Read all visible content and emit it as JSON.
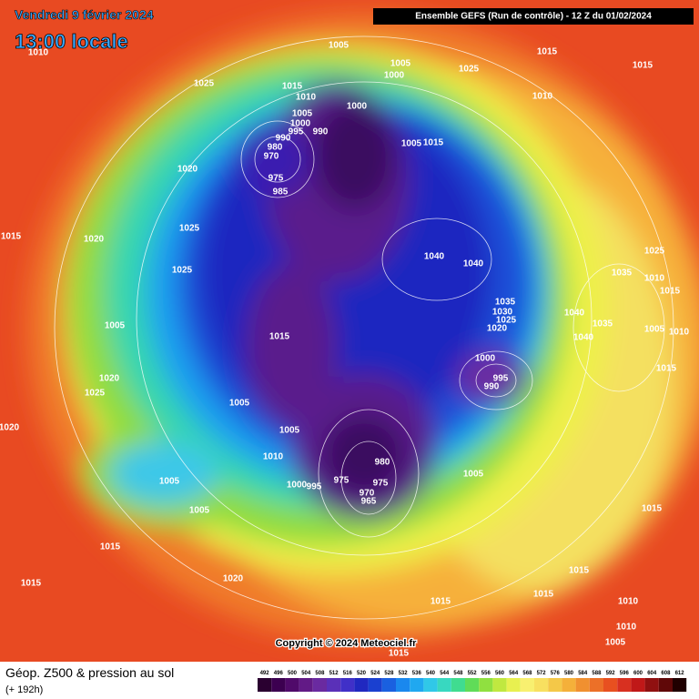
{
  "header": {
    "date": "Vendredi 9 février 2024",
    "time": "13:00 locale",
    "run": "Ensemble GEFS  (Run de contrôle)  -  12 Z du 01/02/2024"
  },
  "map": {
    "isobar_labels": [
      1005,
      1010,
      1025,
      1005,
      1000,
      1025,
      1015,
      1015,
      1015,
      1010,
      1010,
      1005,
      1000,
      1000,
      995,
      990,
      990,
      980,
      970,
      975,
      985,
      1020,
      1005,
      1015,
      1025,
      1020,
      1015,
      1040,
      1040,
      1025,
      1025,
      1035,
      1010,
      1015,
      1035,
      1030,
      1025,
      1020,
      1040,
      1035,
      1005,
      1005,
      1010,
      1015,
      1040,
      1000,
      995,
      990,
      1015,
      1020,
      1025,
      1005,
      1020,
      1005,
      1010,
      980,
      1005,
      1005,
      975,
      975,
      1000,
      995,
      970,
      965,
      1005,
      1015,
      1015,
      1015,
      1020,
      1015,
      1015,
      1015,
      1010,
      1010,
      1005,
      1015
    ]
  },
  "copyright": "Copyright © 2024 Meteociel.fr",
  "footer": {
    "title": "Géop. Z500 & pression au sol",
    "subtitle": "(+ 192h)"
  },
  "legend": {
    "values": [
      492,
      496,
      500,
      504,
      508,
      512,
      516,
      520,
      524,
      528,
      532,
      536,
      540,
      544,
      548,
      552,
      556,
      560,
      564,
      568,
      572,
      576,
      580,
      584,
      588,
      592,
      596,
      600,
      604,
      608,
      612
    ]
  }
}
